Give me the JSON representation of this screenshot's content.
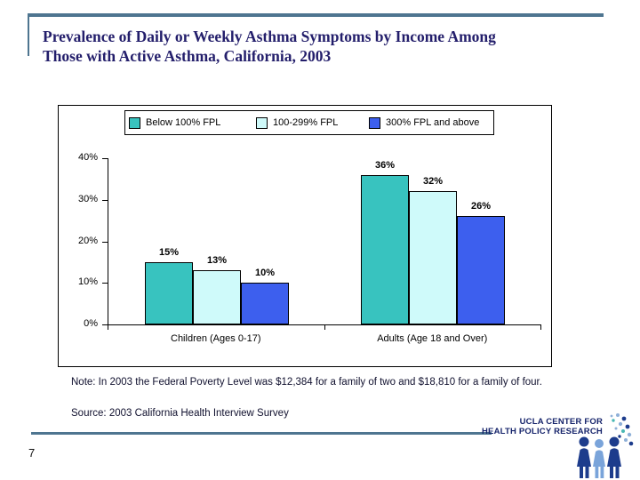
{
  "header": {
    "title_line1": "Prevalence of Daily or Weekly Asthma Symptoms by Income Among",
    "title_line2": "Those with Active Asthma, California, 2003"
  },
  "chart_data": {
    "type": "bar",
    "title": "",
    "categories": [
      "Children (Ages 0-17)",
      "Adults (Age 18 and Over)"
    ],
    "series": [
      {
        "name": "Below 100% FPL",
        "values": [
          15,
          36
        ],
        "color": "#38C3BF"
      },
      {
        "name": "100-299% FPL",
        "values": [
          13,
          32
        ],
        "color": "#CFFAFA"
      },
      {
        "name": "300% FPL and above",
        "values": [
          10,
          26
        ],
        "color": "#3D5FEE"
      }
    ],
    "data_labels": [
      [
        "15%",
        "13%",
        "10%"
      ],
      [
        "36%",
        "32%",
        "26%"
      ]
    ],
    "y_ticks": [
      "0%",
      "10%",
      "20%",
      "30%",
      "40%"
    ],
    "ylim": [
      0,
      40
    ],
    "xlabel": "",
    "ylabel": "",
    "grid": false,
    "legend_position": "top-inside"
  },
  "footer": {
    "note": "Note: In 2003 the Federal Poverty Level was $12,384 for a family of two and $18,810 for a family of four.",
    "source": "Source: 2003 California Health Interview Survey",
    "page_number": "7",
    "logo_line1": "UCLA CENTER FOR",
    "logo_line2": "HEALTH POLICY RESEARCH"
  },
  "colors": {
    "accent": "#4E7590",
    "title_text": "#231E6B",
    "series_teal": "#38C3BF",
    "series_cyan": "#CFFAFA",
    "series_blue": "#3D5FEE",
    "logo_navy": "#1D3C8C",
    "logo_light_blue": "#7AA4DA"
  }
}
